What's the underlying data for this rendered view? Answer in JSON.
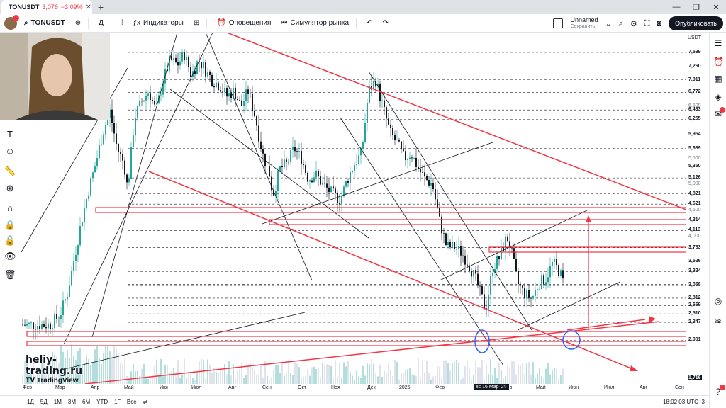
{
  "browser": {
    "tab_symbol": "TONUSDT",
    "tab_price": "3,076",
    "tab_change": "−3.09%",
    "new_tab": "+",
    "window_controls": [
      "—",
      "❐",
      "✕"
    ]
  },
  "header": {
    "symbol": "TONUSDT",
    "indicators_label": "Индикаторы",
    "alerts_label": "Оповещения",
    "replay_label": "Симулятор рынка",
    "layout_name": "Unnamed",
    "layout_status": "Сохранить",
    "publish_label": "Опубликовать",
    "avatar_badge": "1",
    "interval": "Д"
  },
  "price_axis": {
    "unit": "USDT",
    "labels": [
      {
        "text": "7,539",
        "kind": "bold"
      },
      {
        "text": "7,260",
        "kind": "bold"
      },
      {
        "text": "7,011",
        "kind": "bold"
      },
      {
        "text": "6,772",
        "kind": "bold"
      },
      {
        "text": "6,500",
        "kind": "minor"
      },
      {
        "text": "6,433",
        "kind": "bold"
      },
      {
        "text": "6,255",
        "kind": "bold"
      },
      {
        "text": "5,954",
        "kind": "bold"
      },
      {
        "text": "5,689",
        "kind": "bold"
      },
      {
        "text": "5,500",
        "kind": "minor"
      },
      {
        "text": "5,350",
        "kind": "bold"
      },
      {
        "text": "5,126",
        "kind": "bold"
      },
      {
        "text": "5,000",
        "kind": "minor"
      },
      {
        "text": "4,821",
        "kind": "bold"
      },
      {
        "text": "4,621",
        "kind": "bold"
      },
      {
        "text": "4,500",
        "kind": "minor"
      },
      {
        "text": "4,314",
        "kind": "bold"
      },
      {
        "text": "4,113",
        "kind": "bold"
      },
      {
        "text": "4,000",
        "kind": "minor"
      },
      {
        "text": "3,783",
        "kind": "bold"
      },
      {
        "text": "3,526",
        "kind": "bold"
      },
      {
        "text": "3,324",
        "kind": "bold"
      },
      {
        "text": "3,076",
        "kind": "bold"
      },
      {
        "text": "3,055",
        "kind": "bold"
      },
      {
        "text": "2,812",
        "kind": "bold"
      },
      {
        "text": "2,669",
        "kind": "bold"
      },
      {
        "text": "2,510",
        "kind": "bold"
      },
      {
        "text": "2,347",
        "kind": "bold"
      },
      {
        "text": "2,001",
        "kind": "bold"
      },
      {
        "text": "1,716",
        "kind": "dark"
      }
    ]
  },
  "time_axis": {
    "labels": [
      "Фев",
      "Мар",
      "Апр",
      "Май",
      "Июн",
      "Июл",
      "Авг",
      "Сен",
      "Окт",
      "Ноя",
      "Дек",
      "2025",
      "Фев",
      "Апр",
      "Май",
      "Июн",
      "Июл",
      "Авг",
      "Сен"
    ],
    "crosshair_label": "вс 16 Мар '25"
  },
  "bottom_bar": {
    "timeframes": [
      "1Д",
      "5Д",
      "1М",
      "3М",
      "6М",
      "YTD",
      "1Г",
      "Все"
    ],
    "clock": "18:02:03 UTC+3"
  },
  "watermark": {
    "site": "heliy-trading.ru",
    "brand": "TradingView"
  },
  "colors": {
    "up": "#26a69a",
    "down": "#131722",
    "trend_red": "#f23645",
    "zone_blue": "#2962ff"
  }
}
